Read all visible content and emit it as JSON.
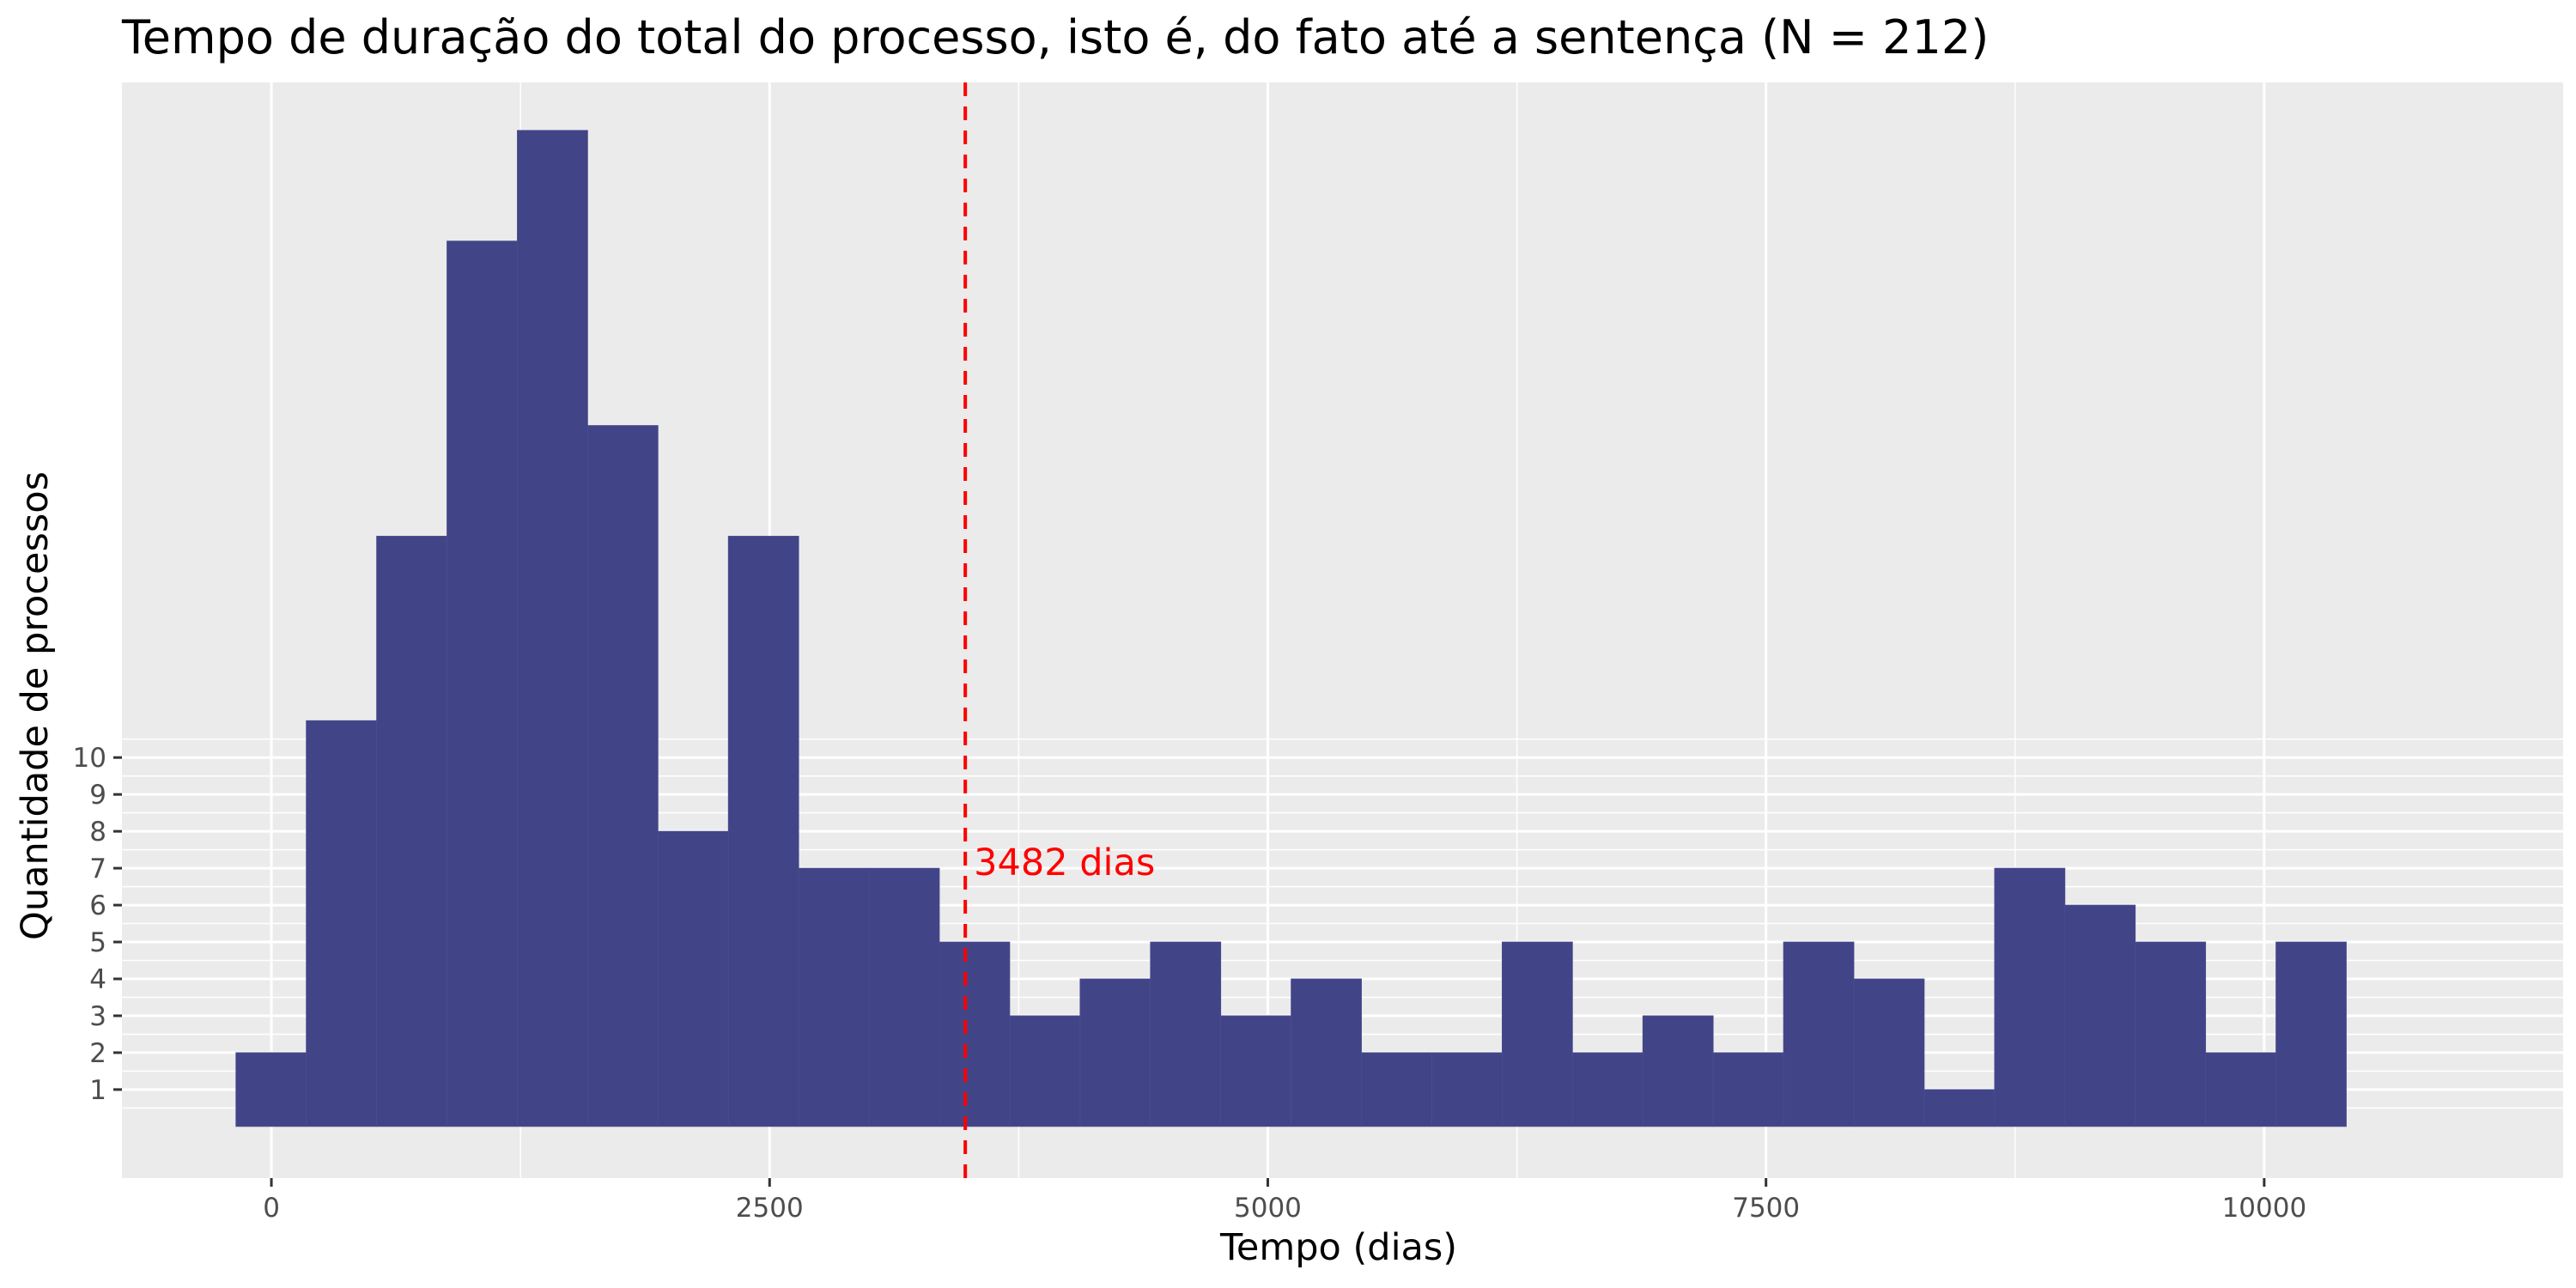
{
  "chart_data": {
    "type": "bar",
    "title": "Tempo de duração do total do processo, isto é, do fato até a sentença (N = 212)",
    "xlabel": "Tempo (dias)",
    "ylabel": "Quantidade de processos",
    "x_ticks": [
      "0",
      "2500",
      "5000",
      "7500",
      "10000"
    ],
    "x_tick_values": [
      0,
      2500,
      5000,
      7500,
      10000
    ],
    "xlim": [
      -750,
      11500
    ],
    "y_ticks": [
      "1",
      "2",
      "3",
      "4",
      "5",
      "6",
      "7",
      "8",
      "9",
      "10"
    ],
    "y_tick_values": [
      1,
      2,
      3,
      4,
      5,
      6,
      7,
      8,
      9,
      10
    ],
    "ylim": [
      -1.4,
      28.3
    ],
    "bin_start": -178,
    "bin_width": 353,
    "values": [
      2,
      11,
      16,
      24,
      27,
      19,
      8,
      16,
      7,
      7,
      5,
      3,
      4,
      5,
      3,
      4,
      2,
      2,
      5,
      2,
      3,
      2,
      5,
      4,
      1,
      7,
      6,
      5,
      2,
      5
    ],
    "bar_color": "#414487",
    "panel_color": "#EBEBEB",
    "grid": true,
    "reference_line": {
      "value": 3482,
      "label": "3482 dias",
      "color": "#FF0000",
      "style": "dashed"
    }
  }
}
